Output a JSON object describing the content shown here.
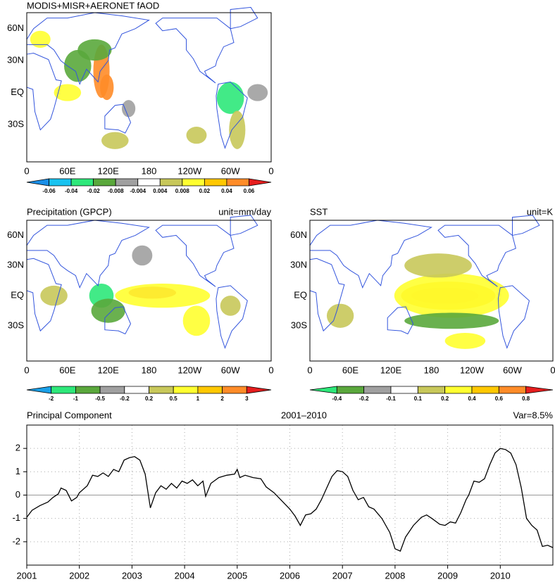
{
  "chart_data": [
    {
      "type": "map",
      "title": "MODIS+MISR+AERONET fAOD",
      "lat_labels": [
        "60N",
        "30N",
        "EQ",
        "30S"
      ],
      "lon_labels": [
        "0",
        "60E",
        "120E",
        "180",
        "120W",
        "60W",
        "0"
      ],
      "colorbar": {
        "labels": [
          -0.06,
          -0.04,
          -0.02,
          -0.008,
          -0.004,
          0.004,
          0.008,
          0.02,
          0.04,
          0.06
        ],
        "colors": [
          "#1a8fe8",
          "#19c3f0",
          "#2ee87a",
          "#5aa83c",
          "#a0a0a0",
          "#ffffff",
          "#c8c85a",
          "#ffff30",
          "#ffc800",
          "#ff8c28",
          "#e61e1e"
        ]
      }
    },
    {
      "type": "map",
      "title": "Precipitation (GPCP)",
      "unit": "unit=mm/day",
      "lat_labels": [
        "60N",
        "30N",
        "EQ",
        "30S"
      ],
      "lon_labels": [
        "0",
        "60E",
        "120E",
        "180",
        "120W",
        "60W",
        "0"
      ],
      "colorbar": {
        "labels": [
          -2,
          -1,
          -0.5,
          -0.2,
          0.2,
          0.5,
          1,
          2,
          3
        ],
        "colors": [
          "#1aa0e8",
          "#2ee87a",
          "#5aa83c",
          "#a0a0a0",
          "#ffffff",
          "#c8c85a",
          "#ffff30",
          "#ffc800",
          "#ff8c28",
          "#e61e1e"
        ]
      }
    },
    {
      "type": "map",
      "title": "SST",
      "unit": "unit=K",
      "lat_labels": [
        "60N",
        "30N",
        "EQ",
        "30S"
      ],
      "lon_labels": [
        "0",
        "60E",
        "120E",
        "180",
        "120W",
        "60W",
        "0"
      ],
      "colorbar": {
        "labels": [
          -0.4,
          -0.2,
          -0.1,
          0.1,
          0.2,
          0.4,
          0.6,
          0.8
        ],
        "colors": [
          "#2ee87a",
          "#5aa83c",
          "#a0a0a0",
          "#ffffff",
          "#c8c85a",
          "#ffff30",
          "#ffc800",
          "#ff8c28",
          "#e61e1e"
        ]
      }
    },
    {
      "type": "line",
      "title": "Principal Component",
      "subtitle": "2001–2010",
      "annotation": "Var=8.5%",
      "x": [
        2001.0,
        2001.1,
        2001.25,
        2001.4,
        2001.5,
        2001.6,
        2001.65,
        2001.75,
        2001.85,
        2001.95,
        2002.0,
        2002.15,
        2002.25,
        2002.35,
        2002.45,
        2002.55,
        2002.65,
        2002.75,
        2002.85,
        2002.95,
        2003.05,
        2003.15,
        2003.25,
        2003.35,
        2003.45,
        2003.55,
        2003.65,
        2003.75,
        2003.85,
        2003.95,
        2004.05,
        2004.15,
        2004.25,
        2004.35,
        2004.4,
        2004.5,
        2004.65,
        2004.8,
        2004.95,
        2005.0,
        2005.05,
        2005.15,
        2005.3,
        2005.45,
        2005.55,
        2005.7,
        2005.85,
        2006.0,
        2006.1,
        2006.2,
        2006.3,
        2006.4,
        2006.5,
        2006.6,
        2006.7,
        2006.8,
        2006.9,
        2007.0,
        2007.1,
        2007.2,
        2007.3,
        2007.4,
        2007.5,
        2007.6,
        2007.75,
        2007.9,
        2008.0,
        2008.1,
        2008.2,
        2008.35,
        2008.5,
        2008.6,
        2008.7,
        2008.85,
        2008.95,
        2009.05,
        2009.15,
        2009.25,
        2009.35,
        2009.4,
        2009.5,
        2009.6,
        2009.7,
        2009.8,
        2009.9,
        2010.0,
        2010.1,
        2010.2,
        2010.3,
        2010.4,
        2010.5,
        2010.6,
        2010.7,
        2010.8,
        2010.9,
        2011.0
      ],
      "values": [
        -0.95,
        -0.65,
        -0.45,
        -0.3,
        -0.1,
        0.05,
        0.3,
        0.2,
        -0.25,
        -0.1,
        0.1,
        0.4,
        0.85,
        0.8,
        0.95,
        0.8,
        1.1,
        1.0,
        1.5,
        1.6,
        1.65,
        1.5,
        0.9,
        -0.55,
        0.1,
        0.4,
        0.25,
        0.5,
        0.3,
        0.6,
        0.5,
        0.65,
        0.4,
        0.6,
        -0.05,
        0.5,
        0.75,
        0.85,
        0.9,
        1.1,
        0.75,
        0.85,
        0.75,
        0.7,
        0.35,
        0.1,
        -0.25,
        -0.6,
        -0.9,
        -1.3,
        -0.85,
        -0.8,
        -0.6,
        -0.2,
        0.3,
        0.8,
        1.05,
        1.0,
        0.8,
        0.2,
        -0.2,
        -0.1,
        -0.5,
        -0.6,
        -1.0,
        -1.6,
        -2.3,
        -2.4,
        -1.8,
        -1.3,
        -0.95,
        -0.85,
        -1.0,
        -1.25,
        -1.3,
        -1.15,
        -1.2,
        -0.75,
        -0.2,
        0.0,
        0.6,
        0.55,
        0.7,
        1.3,
        1.8,
        2.0,
        1.95,
        1.8,
        1.3,
        0.3,
        -1.0,
        -1.3,
        -1.5,
        -2.2,
        -2.15,
        -2.25
      ],
      "color": "#000000",
      "xlim": [
        2001,
        2011
      ],
      "xticks": [
        2001,
        2002,
        2003,
        2004,
        2005,
        2006,
        2007,
        2008,
        2009,
        2010
      ],
      "ylim": [
        -3,
        3
      ],
      "yticks": [
        -2,
        -1,
        0,
        1,
        2
      ],
      "grid": true
    }
  ]
}
